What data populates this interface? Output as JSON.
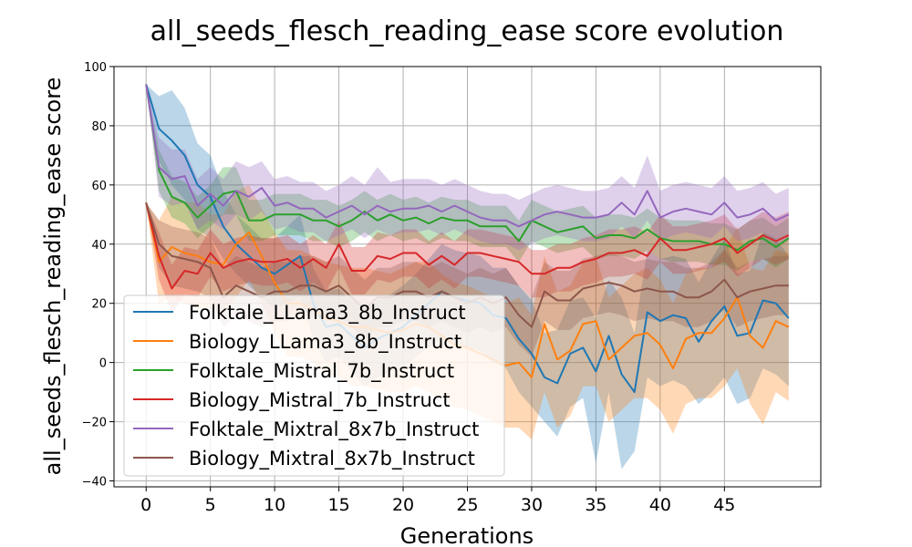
{
  "chart_data": {
    "type": "line",
    "title": "all_seeds_flesch_reading_ease score evolution",
    "xlabel": "Generations",
    "ylabel": "all_seeds_flesch_reading_ease score",
    "xlim": [
      -2.5,
      52.5
    ],
    "ylim": [
      -42,
      100
    ],
    "xticks": [
      0,
      5,
      10,
      15,
      20,
      25,
      30,
      35,
      40,
      45
    ],
    "yticks": [
      -40,
      -20,
      0,
      20,
      40,
      60,
      80,
      100
    ],
    "grid": true,
    "legend_placement": "lower-left",
    "x": [
      0,
      1,
      2,
      3,
      4,
      5,
      6,
      7,
      8,
      9,
      10,
      11,
      12,
      13,
      14,
      15,
      16,
      17,
      18,
      19,
      20,
      21,
      22,
      23,
      24,
      25,
      26,
      27,
      28,
      29,
      30,
      31,
      32,
      33,
      34,
      35,
      36,
      37,
      38,
      39,
      40,
      41,
      42,
      43,
      44,
      45,
      46,
      47,
      48,
      49,
      50
    ],
    "series": [
      {
        "name": "Folktale_LLama3_8b_Instruct",
        "color": "#1f77b4",
        "values": [
          94,
          79,
          75,
          70,
          60,
          56,
          46,
          40,
          36,
          32,
          30,
          33,
          36,
          20,
          12,
          13,
          9,
          5,
          8,
          10,
          12,
          16,
          20,
          24,
          22,
          21,
          20,
          16,
          15,
          8,
          3,
          -5,
          -7,
          3,
          5,
          -3,
          9,
          -4,
          -10,
          17,
          14,
          16,
          15,
          7,
          14,
          19,
          9,
          10,
          21,
          20,
          15
        ],
        "lower": [
          94,
          68,
          60,
          55,
          45,
          42,
          35,
          30,
          26,
          22,
          18,
          20,
          22,
          8,
          0,
          2,
          -3,
          -8,
          -5,
          -3,
          -2,
          2,
          5,
          8,
          6,
          5,
          4,
          0,
          -2,
          -10,
          -15,
          -20,
          -25,
          -15,
          -12,
          -34,
          -10,
          -36,
          -30,
          -5,
          -8,
          -6,
          -8,
          -14,
          -10,
          -5,
          -14,
          -12,
          -2,
          -4,
          -8
        ],
        "upper": [
          94,
          90,
          92,
          86,
          74,
          70,
          58,
          50,
          46,
          42,
          42,
          46,
          50,
          32,
          24,
          25,
          21,
          18,
          21,
          23,
          26,
          30,
          35,
          40,
          38,
          37,
          36,
          32,
          32,
          26,
          21,
          10,
          11,
          21,
          22,
          15,
          28,
          22,
          10,
          38,
          35,
          36,
          35,
          27,
          35,
          42,
          30,
          31,
          44,
          42,
          36
        ]
      },
      {
        "name": "Biology_LLama3_8b_Instruct",
        "color": "#ff7f0e",
        "values": [
          54,
          34,
          39,
          37,
          36,
          34,
          33,
          40,
          44,
          36,
          27,
          20,
          20,
          18,
          15,
          14,
          12,
          12,
          11,
          10,
          11,
          13,
          12,
          9,
          6,
          5,
          3,
          1,
          -1,
          0,
          -5,
          13,
          1,
          4,
          13,
          14,
          1,
          5,
          9,
          10,
          6,
          -2,
          8,
          10,
          10,
          15,
          22,
          9,
          5,
          14,
          12
        ],
        "lower": [
          54,
          20,
          22,
          20,
          18,
          18,
          16,
          22,
          28,
          20,
          10,
          2,
          2,
          0,
          -4,
          -5,
          -8,
          -8,
          -9,
          -10,
          -10,
          -8,
          -10,
          -12,
          -15,
          -16,
          -18,
          -20,
          -22,
          -22,
          -26,
          -10,
          -22,
          -18,
          -8,
          -8,
          -20,
          -16,
          -12,
          -12,
          -16,
          -24,
          -14,
          -12,
          -12,
          -8,
          -2,
          -14,
          -21,
          -10,
          -13
        ],
        "upper": [
          54,
          48,
          56,
          54,
          54,
          50,
          50,
          58,
          60,
          52,
          44,
          38,
          38,
          36,
          34,
          33,
          32,
          32,
          31,
          30,
          32,
          34,
          34,
          30,
          27,
          26,
          24,
          22,
          20,
          22,
          16,
          36,
          24,
          26,
          34,
          36,
          22,
          26,
          30,
          32,
          28,
          20,
          30,
          32,
          32,
          38,
          46,
          32,
          31,
          38,
          37
        ]
      },
      {
        "name": "Folktale_Mistral_7b_Instruct",
        "color": "#2ca02c",
        "values": [
          94,
          65,
          56,
          54,
          49,
          53,
          57,
          58,
          48,
          48,
          50,
          50,
          50,
          48,
          48,
          46,
          48,
          51,
          48,
          50,
          48,
          49,
          47,
          49,
          48,
          48,
          46,
          46,
          46,
          41,
          48,
          46,
          44,
          45,
          46,
          42,
          43,
          43,
          42,
          45,
          42,
          41,
          41,
          41,
          40,
          40,
          38,
          41,
          42,
          39,
          42
        ],
        "lower": [
          94,
          58,
          49,
          47,
          42,
          46,
          50,
          50,
          41,
          41,
          43,
          43,
          43,
          41,
          41,
          39,
          41,
          44,
          41,
          43,
          41,
          42,
          40,
          42,
          41,
          41,
          39,
          39,
          39,
          34,
          41,
          39,
          37,
          38,
          39,
          35,
          36,
          36,
          35,
          38,
          35,
          34,
          34,
          34,
          33,
          33,
          31,
          34,
          35,
          32,
          35
        ],
        "upper": [
          94,
          72,
          63,
          61,
          56,
          60,
          66,
          66,
          55,
          55,
          57,
          57,
          57,
          55,
          55,
          53,
          55,
          58,
          55,
          57,
          55,
          56,
          54,
          56,
          55,
          55,
          53,
          53,
          53,
          48,
          55,
          53,
          51,
          52,
          53,
          49,
          50,
          50,
          49,
          52,
          49,
          48,
          48,
          48,
          47,
          47,
          45,
          48,
          49,
          46,
          49
        ]
      },
      {
        "name": "Biology_Mistral_7b_Instruct",
        "color": "#d62728",
        "values": [
          54,
          36,
          25,
          31,
          30,
          37,
          32,
          34,
          35,
          34,
          34,
          35,
          32,
          35,
          32,
          40,
          31,
          31,
          36,
          35,
          37,
          37,
          33,
          36,
          33,
          37,
          37,
          36,
          35,
          34,
          30,
          30,
          32,
          32,
          34,
          35,
          37,
          37,
          38,
          36,
          42,
          38,
          38,
          39,
          40,
          42,
          37,
          40,
          43,
          41,
          43
        ],
        "lower": [
          54,
          28,
          17,
          23,
          22,
          29,
          24,
          26,
          27,
          26,
          26,
          27,
          24,
          27,
          24,
          32,
          23,
          23,
          28,
          27,
          29,
          29,
          25,
          28,
          25,
          29,
          29,
          28,
          27,
          26,
          22,
          22,
          24,
          24,
          26,
          27,
          29,
          29,
          30,
          28,
          34,
          30,
          30,
          31,
          32,
          34,
          29,
          32,
          35,
          33,
          35
        ],
        "upper": [
          54,
          44,
          33,
          39,
          38,
          45,
          40,
          42,
          43,
          42,
          42,
          43,
          40,
          43,
          40,
          48,
          39,
          39,
          44,
          43,
          45,
          45,
          41,
          44,
          41,
          45,
          45,
          44,
          43,
          42,
          38,
          38,
          40,
          40,
          42,
          43,
          45,
          45,
          46,
          44,
          50,
          46,
          46,
          47,
          48,
          50,
          45,
          48,
          51,
          49,
          51
        ]
      },
      {
        "name": "Folktale_Mixtral_8x7b_Instruct",
        "color": "#9467bd",
        "values": [
          94,
          66,
          62,
          63,
          53,
          57,
          53,
          58,
          56,
          59,
          53,
          54,
          52,
          52,
          49,
          51,
          53,
          50,
          53,
          51,
          52,
          52,
          53,
          51,
          53,
          51,
          49,
          48,
          48,
          46,
          48,
          50,
          51,
          50,
          49,
          49,
          50,
          54,
          50,
          58,
          49,
          51,
          52,
          51,
          50,
          54,
          49,
          50,
          52,
          48,
          50
        ],
        "lower": [
          94,
          56,
          53,
          54,
          45,
          48,
          45,
          50,
          48,
          51,
          45,
          46,
          44,
          44,
          41,
          43,
          45,
          42,
          45,
          43,
          44,
          44,
          45,
          43,
          45,
          43,
          41,
          40,
          40,
          38,
          40,
          42,
          43,
          42,
          41,
          41,
          42,
          46,
          42,
          48,
          41,
          43,
          44,
          43,
          42,
          46,
          41,
          42,
          44,
          40,
          42
        ],
        "upper": [
          94,
          76,
          72,
          72,
          62,
          66,
          62,
          68,
          66,
          68,
          62,
          63,
          61,
          61,
          58,
          60,
          63,
          60,
          66,
          61,
          62,
          62,
          62,
          60,
          62,
          60,
          58,
          57,
          57,
          55,
          57,
          59,
          60,
          59,
          58,
          58,
          59,
          63,
          59,
          70,
          58,
          60,
          61,
          60,
          59,
          63,
          58,
          59,
          61,
          57,
          59
        ]
      },
      {
        "name": "Biology_Mixtral_8x7b_Instruct",
        "color": "#8c564b",
        "values": [
          54,
          40,
          36,
          35,
          34,
          32,
          22,
          26,
          24,
          22,
          24,
          24,
          26,
          26,
          24,
          26,
          22,
          18,
          22,
          22,
          24,
          24,
          22,
          24,
          22,
          20,
          22,
          20,
          22,
          16,
          12,
          24,
          21,
          21,
          25,
          26,
          27,
          26,
          24,
          25,
          24,
          24,
          22,
          22,
          24,
          28,
          22,
          24,
          25,
          26,
          26
        ],
        "lower": [
          54,
          32,
          26,
          25,
          24,
          22,
          12,
          16,
          14,
          12,
          14,
          14,
          16,
          16,
          14,
          16,
          12,
          8,
          12,
          12,
          14,
          14,
          12,
          14,
          12,
          10,
          12,
          10,
          12,
          6,
          2,
          14,
          11,
          11,
          15,
          16,
          17,
          16,
          14,
          15,
          14,
          14,
          12,
          12,
          14,
          18,
          12,
          14,
          15,
          16,
          16
        ],
        "upper": [
          54,
          48,
          46,
          45,
          44,
          42,
          32,
          36,
          34,
          32,
          34,
          34,
          36,
          36,
          34,
          36,
          32,
          28,
          32,
          32,
          34,
          34,
          32,
          34,
          32,
          30,
          32,
          30,
          32,
          26,
          22,
          34,
          31,
          31,
          35,
          36,
          37,
          36,
          34,
          35,
          34,
          34,
          32,
          32,
          34,
          38,
          32,
          34,
          35,
          36,
          36
        ]
      }
    ]
  }
}
